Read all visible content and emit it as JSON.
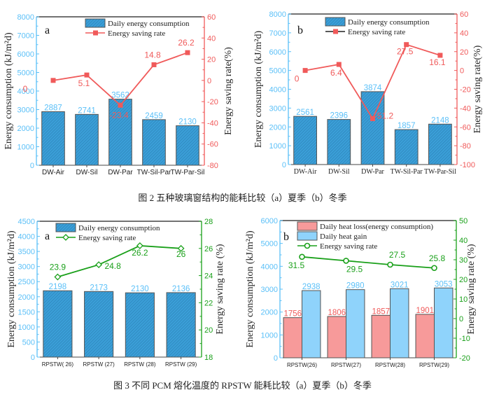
{
  "captions": {
    "fig2": "图 2 五种玻璃窗结构的能耗比较（a）夏季（b）冬季",
    "fig3": "图 3 不同 PCM 熔化温度的 RPSTW 能耗比较（a）夏季（b）冬季"
  },
  "colors": {
    "bar_blue": "#3b9fd8",
    "bar_stroke": "#555555",
    "axis_left": "#5bc0f8",
    "red": "#f05a5a",
    "green": "#1aa01a",
    "pink_bar": "#f79a9a",
    "light_blue_bar": "#8fd3fb"
  },
  "chart_data": [
    {
      "id": "fig2a",
      "type": "bar",
      "panel_label": "a",
      "categories": [
        "DW-Air",
        "DW-Sil",
        "DW-Par",
        "TW-Sil-Par",
        "TW-Par-Sil"
      ],
      "series": [
        {
          "name": "Daily energy consumption",
          "kind": "bar",
          "axis": "left",
          "values": [
            2887,
            2741,
            3562,
            2459,
            2130
          ]
        },
        {
          "name": "Energy saving rate",
          "kind": "line",
          "marker": "square",
          "axis": "right",
          "values": [
            0,
            5.1,
            -23.4,
            14.8,
            26.2
          ]
        }
      ],
      "ylabel": "Energy consumption (kJ/m²d)",
      "y2label": "Energy saving rate(%)",
      "ylim": [
        0,
        8000
      ],
      "yticks": [
        0,
        1000,
        2000,
        3000,
        4000,
        5000,
        6000,
        7000,
        8000
      ],
      "y2lim": [
        -80,
        60
      ],
      "y2ticks": [
        -80,
        -60,
        -40,
        -20,
        0,
        20,
        40,
        60
      ],
      "legend": "top-center",
      "grid": false
    },
    {
      "id": "fig2b",
      "type": "bar",
      "panel_label": "b",
      "categories": [
        "DW-Air",
        "DW-Sil",
        "DW-Par",
        "TW-Sil-Par",
        "TW-Par-Sil"
      ],
      "series": [
        {
          "name": "Daily energy consumption",
          "kind": "bar",
          "axis": "left",
          "values": [
            2561,
            2396,
            3874,
            1857,
            2148
          ]
        },
        {
          "name": "Energy saving rate",
          "kind": "line",
          "marker": "square",
          "axis": "right",
          "values": [
            0,
            6.4,
            -51.2,
            27.5,
            16.1
          ]
        }
      ],
      "ylabel": "Energy consumption (kJ/m²d)",
      "y2label": "Energy saving rate(%)",
      "ylim": [
        0,
        8000
      ],
      "yticks": [
        0,
        1000,
        2000,
        3000,
        4000,
        5000,
        6000,
        7000,
        8000
      ],
      "y2lim": [
        -100,
        60
      ],
      "y2ticks": [
        -100,
        -80,
        -60,
        -40,
        -20,
        0,
        20,
        40,
        60
      ],
      "legend": "top-center",
      "grid": false
    },
    {
      "id": "fig3a",
      "type": "bar",
      "panel_label": "a",
      "categories": [
        "RPSTW( 26)",
        "RPSTW (27)",
        "RPSTW (28)",
        "RPSTW (29)"
      ],
      "series": [
        {
          "name": "Daily energy consumption",
          "kind": "bar",
          "axis": "left",
          "values": [
            2198,
            2173,
            2130,
            2136
          ]
        },
        {
          "name": "Energy saving rate",
          "kind": "line",
          "marker": "diamond",
          "axis": "right",
          "values": [
            23.9,
            24.8,
            26.2,
            26
          ]
        }
      ],
      "ylabel": "Energy consumption (kJ/m²d)",
      "y2label": "Energy saving rate (%)",
      "ylim": [
        0,
        4500
      ],
      "yticks": [
        0,
        500,
        1000,
        1500,
        2000,
        2500,
        3000,
        3500,
        4000,
        4500
      ],
      "y2lim": [
        18,
        28
      ],
      "y2ticks": [
        18,
        20,
        22,
        24,
        26,
        28
      ],
      "legend": "top-left",
      "grid": false
    },
    {
      "id": "fig3b",
      "type": "bar",
      "panel_label": "b",
      "categories": [
        "RPSTW(26)",
        "RPSTW(27)",
        "RPSTW(28)",
        "RPSTW(29)"
      ],
      "series": [
        {
          "name": "Daily heat loss(energy consumption)",
          "kind": "bar",
          "axis": "left",
          "values": [
            1756,
            1806,
            1857,
            1901
          ]
        },
        {
          "name": "Daily heat gain",
          "kind": "bar",
          "axis": "left",
          "values": [
            2938,
            2980,
            3021,
            3053
          ]
        },
        {
          "name": "Energy saving rate",
          "kind": "line",
          "marker": "circle",
          "axis": "right",
          "values": [
            31.5,
            29.5,
            27.5,
            25.8
          ]
        }
      ],
      "ylabel": "Energy consumption (kJ/m²d)",
      "y2label": "Energy saving rate (%)",
      "ylim": [
        0,
        6000
      ],
      "yticks": [
        0,
        1000,
        2000,
        3000,
        4000,
        5000,
        6000
      ],
      "y2lim": [
        -20,
        50
      ],
      "y2ticks": [
        -20,
        -10,
        0,
        10,
        20,
        30,
        40,
        50
      ],
      "legend": "top-left",
      "grid": false
    }
  ]
}
